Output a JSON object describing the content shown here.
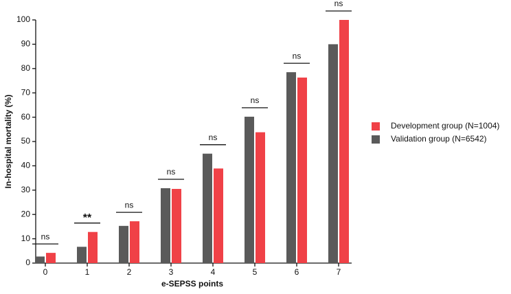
{
  "chart_data": {
    "type": "bar",
    "x_label": "e-SEPSS points",
    "y_label": "In-hospital mortality (%)",
    "categories": [
      "0",
      "1",
      "2",
      "3",
      "4",
      "5",
      "6",
      "7"
    ],
    "series": [
      {
        "name": "Development group (N=1004)",
        "color": "#f04147",
        "values": [
          4.2,
          12.8,
          17.2,
          30.5,
          38.9,
          53.8,
          76.3,
          100
        ]
      },
      {
        "name": "Validation group (N=6542)",
        "color": "#5a5a5a",
        "values": [
          2.7,
          6.7,
          15.3,
          30.8,
          45,
          60.2,
          78.5,
          90
        ]
      }
    ],
    "annotations": [
      "ns",
      "**",
      "ns",
      "ns",
      "ns",
      "ns",
      "ns",
      "ns"
    ],
    "ylim": [
      0,
      100
    ],
    "yticks": [
      0,
      10,
      20,
      30,
      40,
      50,
      60,
      70,
      80,
      90,
      100
    ],
    "legend": "right"
  }
}
